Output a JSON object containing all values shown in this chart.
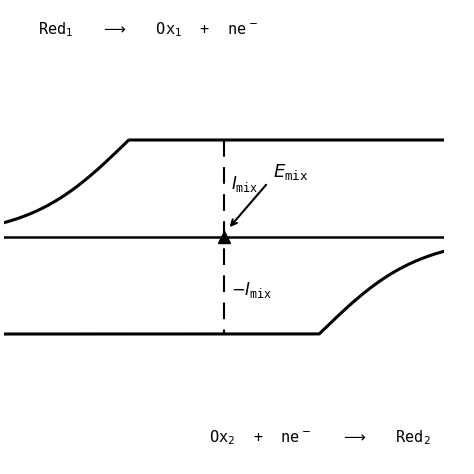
{
  "background_color": "#ffffff",
  "emix_x": 0.0,
  "imix_y": 0.75,
  "upper_midpoint": -1.8,
  "lower_midpoint": 1.8,
  "steepness": 1.0,
  "dashed_line_color": "#000000",
  "curve_color": "#000000",
  "axis_color": "#000000",
  "fig_width": 4.74,
  "fig_height": 4.74,
  "dpi": 100,
  "xlim": [
    -4.5,
    4.5
  ],
  "ylim": [
    -1.8,
    1.8
  ]
}
